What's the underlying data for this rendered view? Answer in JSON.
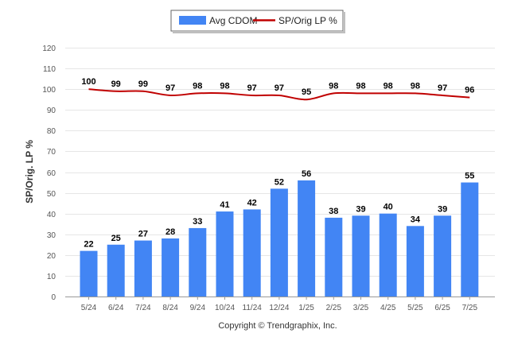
{
  "chart_data": {
    "type": "bar",
    "categories": [
      "5/24",
      "6/24",
      "7/24",
      "8/24",
      "9/24",
      "10/24",
      "11/24",
      "12/24",
      "1/25",
      "2/25",
      "3/25",
      "4/25",
      "5/25",
      "6/25",
      "7/25"
    ],
    "series": [
      {
        "name": "Avg CDOM",
        "type": "bar",
        "color": "#4285f4",
        "values": [
          22,
          25,
          27,
          28,
          33,
          41,
          42,
          52,
          56,
          38,
          39,
          40,
          34,
          39,
          55
        ]
      },
      {
        "name": "SP/Orig LP %",
        "type": "line",
        "color": "#c00000",
        "values": [
          100,
          99,
          99,
          97,
          98,
          98,
          97,
          97,
          95,
          98,
          98,
          98,
          98,
          97,
          96
        ]
      }
    ],
    "ylabel": "SP/Orig. LP %",
    "xlabel": "",
    "ylim": [
      0,
      120
    ],
    "yticks": [
      0,
      10,
      20,
      30,
      40,
      50,
      60,
      70,
      80,
      90,
      100,
      110,
      120
    ],
    "grid": true,
    "legend_position": "top-center"
  },
  "copyright": "Copyright © Trendgraphix, Inc."
}
